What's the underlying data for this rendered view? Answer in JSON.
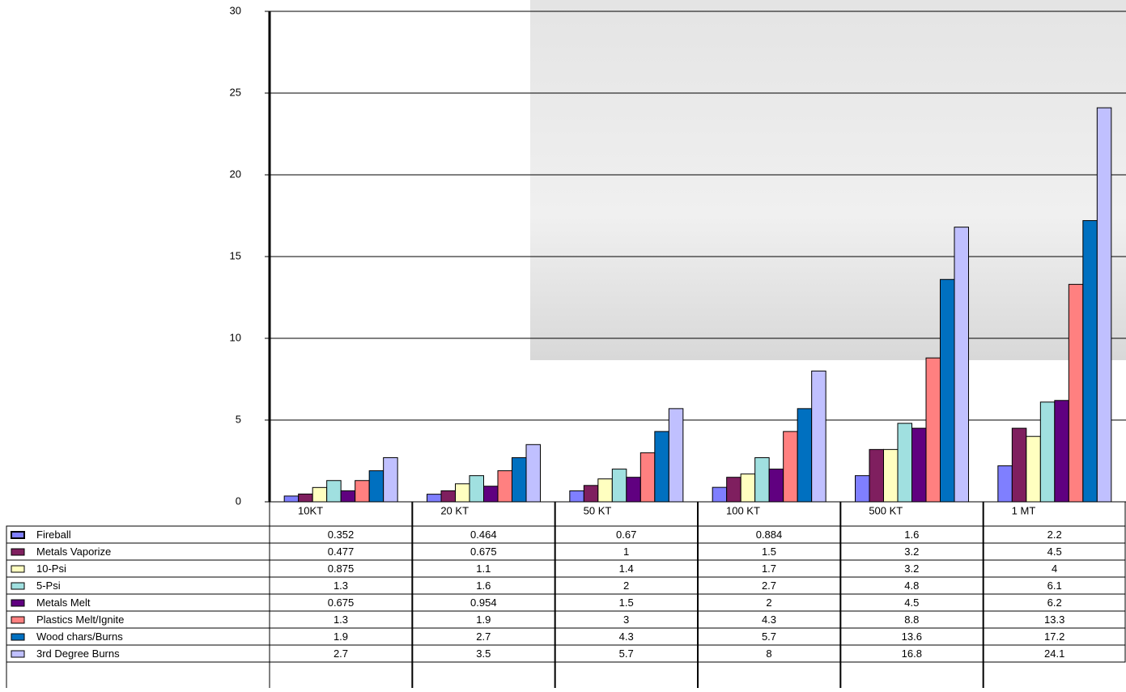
{
  "chart_data": {
    "type": "bar",
    "categories": [
      "10KT",
      "20 KT",
      "50 KT",
      "100 KT",
      "500 KT",
      "1 MT"
    ],
    "series": [
      {
        "name": "Fireball",
        "color": "#7f7fff",
        "values": [
          0.352,
          0.464,
          0.67,
          0.884,
          1.6,
          2.2
        ]
      },
      {
        "name": "Metals Vaporize",
        "color": "#7f1f5f",
        "values": [
          0.477,
          0.675,
          1,
          1.5,
          3.2,
          4.5
        ]
      },
      {
        "name": "10-Psi",
        "color": "#ffffc0",
        "values": [
          0.875,
          1.1,
          1.4,
          1.7,
          3.2,
          4
        ]
      },
      {
        "name": "5-Psi",
        "color": "#a0e0e0",
        "values": [
          1.3,
          1.6,
          2,
          2.7,
          4.8,
          6.1
        ]
      },
      {
        "name": "Metals Melt",
        "color": "#600080",
        "values": [
          0.675,
          0.954,
          1.5,
          2,
          4.5,
          6.2
        ]
      },
      {
        "name": "Plastics Melt/Ignite",
        "color": "#ff8080",
        "values": [
          1.3,
          1.9,
          3,
          4.3,
          8.8,
          13.3
        ]
      },
      {
        "name": "Wood chars/Burns",
        "color": "#0070c0",
        "values": [
          1.9,
          2.7,
          4.3,
          5.7,
          13.6,
          17.2
        ]
      },
      {
        "name": "3rd Degree Burns",
        "color": "#c0c0ff",
        "values": [
          2.7,
          3.5,
          5.7,
          8,
          16.8,
          24.1
        ]
      }
    ],
    "ylim": [
      0,
      30
    ],
    "yticks": [
      0,
      5,
      10,
      15,
      20,
      25,
      30
    ],
    "grid": true
  }
}
